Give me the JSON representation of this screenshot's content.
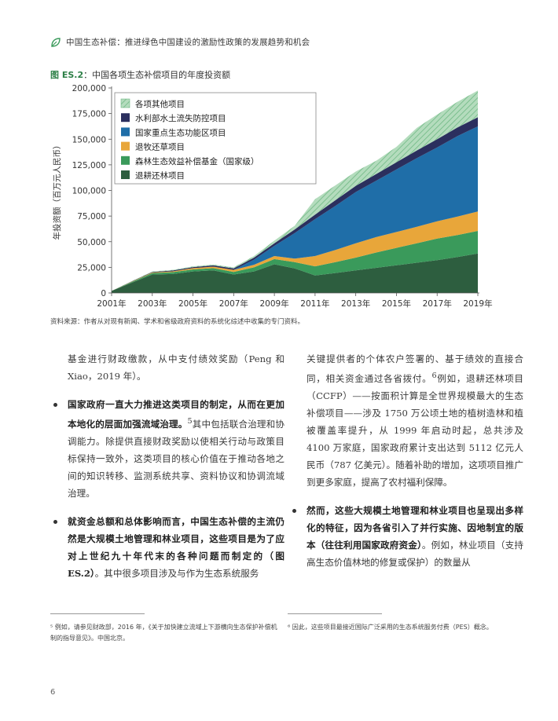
{
  "header": {
    "title": "中国生态补偿：推进绿色中国建设的激励性政策的发展趋势和机会"
  },
  "figure": {
    "label": "图 ES.2",
    "title": "：中国各项生态补偿项目的年度投资额"
  },
  "colors": {
    "s0": "#2d5e3f",
    "s1": "#3a9a5b",
    "s2": "#e8a63a",
    "s3": "#1f6ea8",
    "s4": "#2b2f5e",
    "s5": "#b4dcbd"
  },
  "chart_data": {
    "type": "area",
    "stacked": true,
    "ylabel": "年投资额（百万元人民币）",
    "ylim": [
      0,
      200000
    ],
    "yticks": [
      "0",
      "25,000",
      "50,000",
      "75,000",
      "100,000",
      "125,000",
      "150,000",
      "175,000",
      "200,000"
    ],
    "ytick_values": [
      0,
      25000,
      50000,
      75000,
      100000,
      125000,
      150000,
      175000,
      200000
    ],
    "x": [
      2001,
      2002,
      2003,
      2004,
      2005,
      2006,
      2007,
      2008,
      2009,
      2010,
      2011,
      2012,
      2013,
      2014,
      2015,
      2016,
      2017,
      2018,
      2019
    ],
    "xticks": [
      "2001年",
      "2003年",
      "2005年",
      "2007年",
      "2009年",
      "2011年",
      "2013年",
      "2015年",
      "2017年",
      "2019年"
    ],
    "xtick_values": [
      2001,
      2003,
      2005,
      2007,
      2009,
      2011,
      2013,
      2015,
      2017,
      2019
    ],
    "legend_position": "top-left",
    "grid": false,
    "series": [
      {
        "name": "退耕还林项目",
        "values": [
          2000,
          10000,
          18000,
          18500,
          21000,
          22000,
          18000,
          21000,
          28000,
          24000,
          17000,
          19500,
          22000,
          24500,
          27000,
          29500,
          32000,
          35000,
          38500
        ]
      },
      {
        "name": "森林生态效益补偿基金（国家级）",
        "values": [
          0,
          800,
          1500,
          1800,
          2000,
          2200,
          2500,
          4000,
          5000,
          6000,
          9000,
          10500,
          12500,
          15000,
          17000,
          19000,
          21000,
          21500,
          22000
        ]
      },
      {
        "name": "退牧还草项目",
        "values": [
          0,
          300,
          500,
          800,
          1200,
          1500,
          2000,
          2500,
          3000,
          3500,
          10000,
          12000,
          14000,
          15000,
          15500,
          16000,
          17000,
          18000,
          19000
        ]
      },
      {
        "name": "国家重点生态功能区项目",
        "values": [
          0,
          0,
          0,
          0,
          0,
          0,
          0,
          5000,
          10000,
          25000,
          36000,
          43000,
          50000,
          55000,
          61000,
          67000,
          72000,
          78500,
          83000
        ]
      },
      {
        "name": "水利部水土流失防控项目",
        "values": [
          0,
          300,
          500,
          800,
          1000,
          1200,
          1500,
          2000,
          2500,
          3500,
          4500,
          5500,
          6000,
          6500,
          7000,
          7500,
          8000,
          8500,
          9000
        ]
      },
      {
        "name": "各项其他项目",
        "values": [
          0,
          300,
          500,
          600,
          800,
          900,
          1000,
          1500,
          2500,
          3500,
          15000,
          14500,
          14000,
          13000,
          15000,
          22000,
          24000,
          25000,
          26000
        ]
      }
    ]
  },
  "source": "资料来源：作者从对现有新闻、学术和省级政府资料的系统化综述中收集的专门资料。",
  "left_column": {
    "intro": "基金进行财政缴款，从中支付绩效奖励（Peng 和 Xiao，2019 年）。",
    "b1_bold": "国家政府一直大力推进这类项目的制定，从而在更加本地化的层面加强流域治理。",
    "b1_sup": "5",
    "b1_text": "其中包括联合治理和协调能力。除提供直接财政奖励以使相关行动与政策目标保持一致外，这类项目的核心价值在于推动各地之间的知识转移、监测系统共享、资料协议和协调流域治理。",
    "b2_bold": "就资金总额和总体影响而言，中国生态补偿的主流仍然是大规模土地管理和林业项目，这些项目是为了应对上世纪九十年代末的各种问题而制定的",
    "b2_ref": "（图 ES.2）",
    "b2_text": "。其中很多项目涉及与作为生态系统服务"
  },
  "right_column": {
    "intro_a": "关键提供者的个体农户签署的、基于绩效的直接合同，相关资金通过各省拨付。",
    "intro_sup": "6",
    "intro_b": "例如，退耕还林项目（CCFP）——按面积计算是全世界规模最大的生态补偿项目——涉及 1750 万公顷土地的植树造林和植被覆盖率提升，从 1999 年启动时起，总共涉及 4100 万家庭，国家政府累计支出达到 5112 亿元人民币（787 亿美元）。随着补助的增加，这项项目推广到更多家庭，提高了农村福利保障。",
    "b_bold": "然而，这些大规模土地管理和林业项目也呈现出多样化的特征，因为各省引入了并行实施、因地制宜的版本（往往利用国家政府资金）",
    "b_text": "。例如，林业项目（支持高生态价值林地的修复或保护）的数量从"
  },
  "footnotes": {
    "left": "⁵ 例如，请参见财政部，2016 年，《关于加快建立流域上下游横向生态保护补偿机制的指导意见》。中国北京。",
    "right": "⁶ 因此，这些项目最接近国际广泛采用的生态系统服务付费（PES）概念。"
  },
  "page_number": "6"
}
